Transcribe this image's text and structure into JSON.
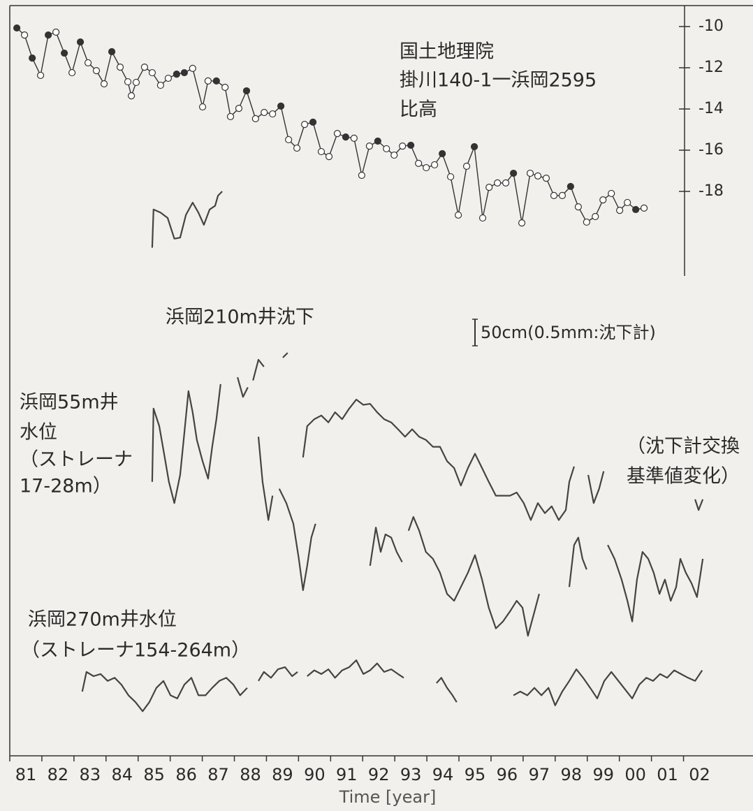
{
  "chart_data": {
    "type": "line",
    "xlabel": "Time [year]",
    "xlim": [
      1981,
      2004.1
    ],
    "xticks": [
      {
        "value": 1981,
        "label": "81"
      },
      {
        "value": 1982,
        "label": "82"
      },
      {
        "value": 1983,
        "label": "83"
      },
      {
        "value": 1984,
        "label": "84"
      },
      {
        "value": 1985,
        "label": "85"
      },
      {
        "value": 1986,
        "label": "86"
      },
      {
        "value": 1987,
        "label": "87"
      },
      {
        "value": 1988,
        "label": "88"
      },
      {
        "value": 1989,
        "label": "89"
      },
      {
        "value": 1990,
        "label": "90"
      },
      {
        "value": 1991,
        "label": "91"
      },
      {
        "value": 1992,
        "label": "92"
      },
      {
        "value": 1993,
        "label": "93"
      },
      {
        "value": 1994,
        "label": "94"
      },
      {
        "value": 1995,
        "label": "95"
      },
      {
        "value": 1996,
        "label": "96"
      },
      {
        "value": 1997,
        "label": "97"
      },
      {
        "value": 1998,
        "label": "98"
      },
      {
        "value": 1999,
        "label": "99"
      },
      {
        "value": 2000,
        "label": "00"
      },
      {
        "value": 2001,
        "label": "01"
      },
      {
        "value": 2002,
        "label": "02"
      }
    ],
    "ylim": [
      -22,
      -9
    ],
    "yticks": [
      -10,
      -12,
      -14,
      -16,
      -18
    ],
    "y2lim": [
      0,
      1413
    ],
    "scale_bar": {
      "value": 50,
      "label": "50cm(0.5mm:沈下計)"
    },
    "annotations": [
      "（沈下計交換",
      "基準値変化）"
    ],
    "series": [
      {
        "label": [
          "国土地理院",
          "掛川140-1一浜岡2595",
          "比高"
        ],
        "color": "#333333",
        "axis": "y",
        "x": [
          1981.22,
          1981.46,
          1981.7,
          1981.96,
          1982.2,
          1982.44,
          1982.7,
          1982.94,
          1983.2,
          1983.44,
          1983.7,
          1983.94,
          1984.18,
          1984.44,
          1984.68,
          1984.79,
          1984.94,
          1985.2,
          1985.44,
          1985.7,
          1985.94,
          1986.2,
          1986.44,
          1986.7,
          1987.01,
          1987.18,
          1987.44,
          1987.71,
          1987.88,
          1988.14,
          1988.38,
          1988.66,
          1988.93,
          1989.19,
          1989.45,
          1989.69,
          1989.95,
          1990.19,
          1990.45,
          1990.71,
          1990.95,
          1991.21,
          1991.47,
          1991.73,
          1991.97,
          1992.21,
          1992.47,
          1992.74,
          1992.98,
          1993.24,
          1993.5,
          1993.74,
          1993.98,
          1994.24,
          1994.48,
          1994.74,
          1994.98,
          1995.24,
          1995.48,
          1995.74,
          1995.94,
          1996.2,
          1996.46,
          1996.7,
          1996.96,
          1997.22,
          1997.46,
          1997.72,
          1997.96,
          1998.22,
          1998.48,
          1998.72,
          1998.98,
          1999.25,
          1999.49,
          1999.75,
          2000.01,
          2000.25,
          2000.51,
          2000.77
        ],
        "values": [
          -10.07,
          -10.41,
          -11.53,
          -12.37,
          -10.41,
          -10.27,
          -11.29,
          -12.24,
          -10.75,
          -11.76,
          -12.14,
          -12.78,
          -11.22,
          -11.97,
          -12.68,
          -13.36,
          -12.71,
          -11.97,
          -12.24,
          -12.85,
          -12.51,
          -12.31,
          -12.24,
          -12.03,
          -13.9,
          -12.64,
          -12.64,
          -12.95,
          -14.37,
          -13.97,
          -13.12,
          -14.47,
          -14.17,
          -14.24,
          -13.86,
          -15.49,
          -15.9,
          -14.75,
          -14.64,
          -16.07,
          -16.31,
          -15.19,
          -15.36,
          -15.42,
          -17.22,
          -15.8,
          -15.56,
          -15.93,
          -16.24,
          -15.8,
          -15.76,
          -16.64,
          -16.85,
          -16.71,
          -16.17,
          -17.29,
          -19.15,
          -16.78,
          -15.83,
          -19.29,
          -17.8,
          -17.59,
          -17.59,
          -17.12,
          -19.53,
          -17.12,
          -17.25,
          -17.36,
          -18.2,
          -18.2,
          -17.76,
          -18.75,
          -19.49,
          -19.22,
          -18.41,
          -18.1,
          -18.92,
          -18.54,
          -18.88,
          -18.81
        ],
        "filled": [
          true,
          false,
          true,
          false,
          true,
          false,
          true,
          false,
          true,
          false,
          false,
          false,
          true,
          false,
          false,
          false,
          false,
          false,
          false,
          false,
          false,
          true,
          true,
          false,
          false,
          false,
          true,
          false,
          false,
          false,
          true,
          false,
          false,
          false,
          true,
          false,
          false,
          false,
          true,
          false,
          false,
          false,
          true,
          false,
          false,
          false,
          true,
          false,
          false,
          false,
          true,
          false,
          false,
          false,
          true,
          false,
          false,
          false,
          true,
          false,
          false,
          false,
          false,
          true,
          false,
          false,
          false,
          false,
          false,
          false,
          true,
          false,
          false,
          false,
          false,
          false,
          false,
          false,
          true,
          false
        ]
      },
      {
        "label": [
          "浜岡210m井沈下"
        ],
        "color": "#444444",
        "axis": "y2",
        "x": [
          1985.44,
          1985.48,
          1985.7,
          1985.92,
          1986.13,
          1986.31,
          1986.49,
          1986.7,
          1986.88,
          1987.05,
          1987.23,
          1987.4,
          1987.49,
          1987.62,
          null,
          1988.1,
          1988.27,
          1988.42,
          null,
          1988.58,
          1988.75,
          1988.92,
          null,
          1989.23,
          null,
          1989.51,
          1989.66,
          null,
          1990.14,
          1990.27,
          1990.49,
          1990.71,
          1990.93,
          1991.14,
          1991.36,
          1991.58,
          1991.8,
          1992.02,
          1992.23,
          1992.45,
          1992.67,
          1992.89,
          1993.1,
          1993.32,
          1993.54,
          1993.76,
          1993.97,
          1994.19,
          1994.41,
          1994.63,
          1994.85,
          1995.06,
          1995.28,
          1995.5,
          1995.72,
          1995.93,
          1996.15,
          1996.37,
          1996.59,
          1996.8,
          1997.02,
          1997.24,
          1997.46,
          1997.68,
          1997.89,
          1998.11,
          1998.33,
          1998.44,
          1998.59,
          null,
          1999.03,
          1999.2,
          1999.37,
          1999.51,
          null,
          2002.36,
          2002.47,
          2002.6
        ],
        "values": [
          957,
          1029,
          1023,
          1013,
          974,
          976,
          1019,
          1042,
          1023,
          1000,
          1029,
          1036,
          1055,
          1063,
          null,
          713,
          676,
          694,
          null,
          707,
          746,
          733,
          null,
          729,
          null,
          750,
          759,
          null,
          562,
          621,
          634,
          641,
          628,
          647,
          634,
          654,
          671,
          661,
          663,
          647,
          634,
          628,
          615,
          601,
          615,
          601,
          595,
          582,
          582,
          555,
          542,
          509,
          542,
          569,
          542,
          516,
          490,
          490,
          490,
          496,
          476,
          444,
          476,
          457,
          470,
          444,
          463,
          516,
          545,
          null,
          529,
          476,
          503,
          536,
          null,
          483,
          463,
          483
        ]
      },
      {
        "label": [
          "浜岡55m井",
          "水位",
          "（ストレーナ",
          "17-28m）"
        ],
        "color": "#444444",
        "axis": "y2",
        "x": [
          1985.44,
          1985.48,
          1985.66,
          1985.81,
          1985.96,
          1986.13,
          1986.31,
          1986.44,
          1986.57,
          1986.7,
          1986.83,
          1987.01,
          1987.18,
          1987.31,
          1987.44,
          1987.57,
          null,
          1988.1,
          null,
          1988.75,
          1988.88,
          1989.06,
          1989.19,
          null,
          1989.4,
          1989.62,
          1989.84,
          1990.01,
          1990.14,
          1990.27,
          1990.4,
          1990.53,
          null,
          1992.23,
          1992.41,
          1992.56,
          1992.71,
          1992.89,
          1993.06,
          1993.23,
          null,
          1993.43,
          1993.58,
          1993.76,
          1993.97,
          1994.19,
          1994.41,
          1994.63,
          1994.85,
          1995.06,
          1995.28,
          1995.5,
          1995.72,
          1995.93,
          1996.15,
          1996.37,
          1996.59,
          1996.8,
          1996.98,
          1997.15,
          1997.33,
          1997.5,
          null,
          1998.44,
          1998.59,
          1998.72,
          1998.85,
          1998.98,
          null,
          1999.64,
          1999.85,
          2000.07,
          2000.25,
          2000.4,
          2000.55,
          2000.72,
          2000.9,
          2001.07,
          2001.25,
          2001.42,
          2001.6,
          2001.77,
          2001.9,
          2002.07,
          2002.25,
          2002.42,
          2002.6
        ],
        "values": [
          516,
          654,
          621,
          569,
          516,
          476,
          529,
          608,
          687,
          647,
          595,
          555,
          522,
          582,
          634,
          700,
          null,
          516,
          null,
          601,
          516,
          444,
          490,
          null,
          503,
          476,
          437,
          371,
          312,
          358,
          411,
          437,
          null,
          358,
          430,
          384,
          417,
          411,
          384,
          365,
          null,
          424,
          450,
          424,
          384,
          371,
          345,
          305,
          292,
          318,
          345,
          378,
          332,
          279,
          240,
          253,
          272,
          292,
          279,
          226,
          266,
          305,
          null,
          318,
          397,
          411,
          371,
          351,
          null,
          397,
          371,
          332,
          292,
          253,
          332,
          384,
          371,
          345,
          305,
          332,
          292,
          318,
          371,
          345,
          325,
          299,
          371
        ]
      },
      {
        "label": [
          "浜岡270m井水位",
          "（ストレーナ154-264m）"
        ],
        "color": "#444444",
        "axis": "y2",
        "x": [
          1983.26,
          1983.39,
          1983.61,
          1983.83,
          1984.05,
          1984.27,
          1984.48,
          1984.7,
          1984.92,
          1985.14,
          1985.35,
          1985.57,
          1985.79,
          1986.01,
          1986.22,
          1986.44,
          1986.66,
          1986.88,
          1987.1,
          1987.31,
          1987.53,
          1987.75,
          1987.97,
          1988.18,
          1988.4,
          null,
          1988.75,
          1988.92,
          1989.14,
          1989.36,
          1989.58,
          1989.8,
          1989.97,
          null,
          1990.27,
          1990.49,
          1990.71,
          1990.93,
          1991.14,
          1991.36,
          1991.58,
          1991.8,
          1992.02,
          1992.23,
          1992.45,
          1992.67,
          1992.89,
          1993.1,
          1993.28,
          null,
          1994.3,
          1994.45,
          1994.63,
          1994.8,
          1994.93,
          null,
          1996.7,
          1996.91,
          1997.13,
          1997.35,
          1997.57,
          1997.79,
          1998.0,
          1998.22,
          1998.44,
          1998.66,
          1998.87,
          1999.09,
          1999.31,
          1999.53,
          1999.75,
          2000.4,
          2000.62,
          2000.84,
          2001.05,
          2001.27,
          2001.49,
          2001.71,
          2001.92,
          2002.14,
          2002.36,
          2002.58
        ],
        "values": [
          121,
          158,
          150,
          154,
          141,
          147,
          134,
          114,
          101,
          84,
          101,
          128,
          141,
          114,
          108,
          134,
          147,
          114,
          114,
          128,
          141,
          147,
          134,
          114,
          128,
          null,
          141,
          158,
          147,
          163,
          167,
          150,
          158,
          null,
          150,
          161,
          154,
          163,
          147,
          161,
          167,
          180,
          154,
          161,
          174,
          158,
          163,
          154,
          147,
          null,
          137,
          147,
          128,
          114,
          101,
          null,
          114,
          121,
          114,
          128,
          114,
          128,
          95,
          121,
          141,
          163,
          147,
          128,
          108,
          141,
          158,
          108,
          134,
          147,
          141,
          154,
          147,
          161,
          154,
          147,
          141,
          161
        ]
      }
    ]
  }
}
